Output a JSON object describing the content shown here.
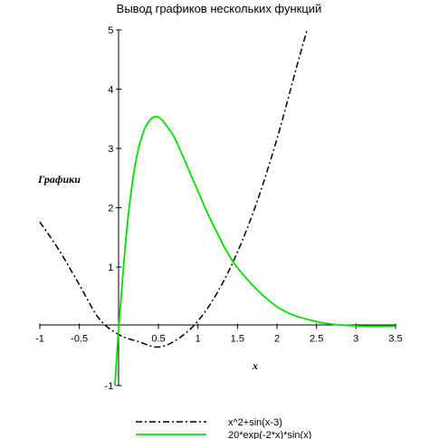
{
  "chart_data": {
    "type": "line",
    "title": "Вывод графиков нескольких функций",
    "xlabel": "x",
    "ylabel": "Графики",
    "xlim": [
      -1,
      3.5
    ],
    "ylim": [
      -1,
      5
    ],
    "x_ticks": [
      "-1",
      "-0.5",
      "0.5",
      "1",
      "1.5",
      "2",
      "2.5",
      "3",
      "3.5"
    ],
    "x_tick_values": [
      -1,
      -0.5,
      0.5,
      1,
      1.5,
      2,
      2.5,
      3,
      3.5
    ],
    "y_ticks": [
      "-1",
      "1",
      "2",
      "3",
      "4",
      "5"
    ],
    "y_tick_values": [
      -1,
      1,
      2,
      3,
      4,
      5
    ],
    "legend_position": "bottom",
    "series": [
      {
        "name": "x^2+sin(x-3)",
        "color": "#000000",
        "style": "dash-dot",
        "x": [
          -1,
          -0.75,
          -0.5,
          -0.25,
          0,
          0.25,
          0.5,
          0.75,
          1,
          1.25,
          1.5,
          1.75,
          2,
          2.25,
          2.38
        ],
        "y": [
          1.76,
          1.27,
          0.7,
          0.13,
          -0.14,
          -0.26,
          -0.35,
          -0.21,
          0.09,
          0.58,
          1.25,
          2.11,
          3.16,
          4.38,
          5.0
        ]
      },
      {
        "name": "20*exp(-2*x)*sin(x)",
        "color": "#00e000",
        "style": "solid",
        "x": [
          -0.05,
          0,
          0.1,
          0.2,
          0.3,
          0.4,
          0.5,
          0.6,
          0.7,
          0.8,
          1.0,
          1.2,
          1.5,
          2.0,
          2.5,
          3.0,
          3.5
        ],
        "y": [
          -1.0,
          0.0,
          1.63,
          2.68,
          3.24,
          3.49,
          3.53,
          3.39,
          3.19,
          2.9,
          2.28,
          1.69,
          0.99,
          0.33,
          0.08,
          0.007,
          0.0
        ]
      }
    ]
  }
}
